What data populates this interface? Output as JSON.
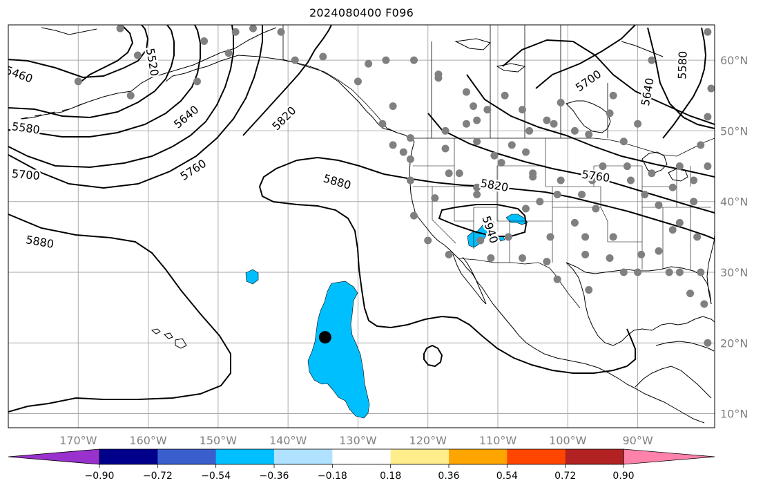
{
  "title": "2024080400 F096",
  "map": {
    "projection": "PlateCarree",
    "extent": {
      "lon_min": -180,
      "lon_max": -79,
      "lat_min": 8,
      "lat_max": 65
    },
    "gridlines": true,
    "lon_ticks": [
      {
        "value": -170,
        "label": "170°W"
      },
      {
        "value": -160,
        "label": "160°W"
      },
      {
        "value": -150,
        "label": "150°W"
      },
      {
        "value": -140,
        "label": "140°W"
      },
      {
        "value": -130,
        "label": "130°W"
      },
      {
        "value": -120,
        "label": "120°W"
      },
      {
        "value": -110,
        "label": "110°W"
      },
      {
        "value": -100,
        "label": "100°W"
      },
      {
        "value": -90,
        "label": "90°W"
      }
    ],
    "lat_ticks": [
      {
        "value": 10,
        "label": "10°N"
      },
      {
        "value": 20,
        "label": "20°N"
      },
      {
        "value": 30,
        "label": "30°N"
      },
      {
        "value": 40,
        "label": "40°N"
      },
      {
        "value": 50,
        "label": "50°N"
      },
      {
        "value": 60,
        "label": "60°N"
      }
    ],
    "contour_labels": [
      {
        "text": "5460",
        "lon": -178.5,
        "lat": 57.9,
        "rot": 20
      },
      {
        "text": "5520",
        "lon": -159.5,
        "lat": 59.7,
        "rot": 80
      },
      {
        "text": "5580",
        "lon": -177.5,
        "lat": 50.3,
        "rot": 8
      },
      {
        "text": "5640",
        "lon": -154.5,
        "lat": 51.9,
        "rot": -40
      },
      {
        "text": "5700",
        "lon": -177.5,
        "lat": 43.7,
        "rot": 5
      },
      {
        "text": "5760",
        "lon": -153.5,
        "lat": 44.4,
        "rot": -33
      },
      {
        "text": "5820",
        "lon": -140.5,
        "lat": 51.7,
        "rot": -45
      },
      {
        "text": "5880",
        "lon": -133.0,
        "lat": 42.7,
        "rot": 16
      },
      {
        "text": "5880",
        "lon": -175.5,
        "lat": 34.2,
        "rot": 10
      },
      {
        "text": "5820",
        "lon": -110.5,
        "lat": 42.2,
        "rot": 10
      },
      {
        "text": "5760",
        "lon": -96.0,
        "lat": 43.5,
        "rot": 8
      },
      {
        "text": "5700",
        "lon": -97.0,
        "lat": 57.0,
        "rot": -35
      },
      {
        "text": "5640",
        "lon": -88.5,
        "lat": 55.5,
        "rot": -80
      },
      {
        "text": "5580",
        "lon": -83.5,
        "lat": 59.3,
        "rot": -88
      },
      {
        "text": "5940",
        "lon": -111.2,
        "lat": 36.0,
        "rot": 72
      }
    ],
    "shaded_regions_color": "#00bfff",
    "station_dot_color": "#808080",
    "storm_marker": {
      "lon": -134.7,
      "lat": 20.8,
      "color": "#000000"
    }
  },
  "colorbar": {
    "colors": [
      "#9932cc",
      "#00008b",
      "#3a5fcd",
      "#00bfff",
      "#b0e2ff",
      "#ffffff",
      "#ffec8b",
      "#ffa500",
      "#ff4500",
      "#b22222",
      "#ff82ab"
    ],
    "ticks": [
      "−0.90",
      "−0.72",
      "−0.54",
      "−0.36",
      "−0.18",
      "0.18",
      "0.36",
      "0.54",
      "0.72",
      "0.90"
    ]
  }
}
